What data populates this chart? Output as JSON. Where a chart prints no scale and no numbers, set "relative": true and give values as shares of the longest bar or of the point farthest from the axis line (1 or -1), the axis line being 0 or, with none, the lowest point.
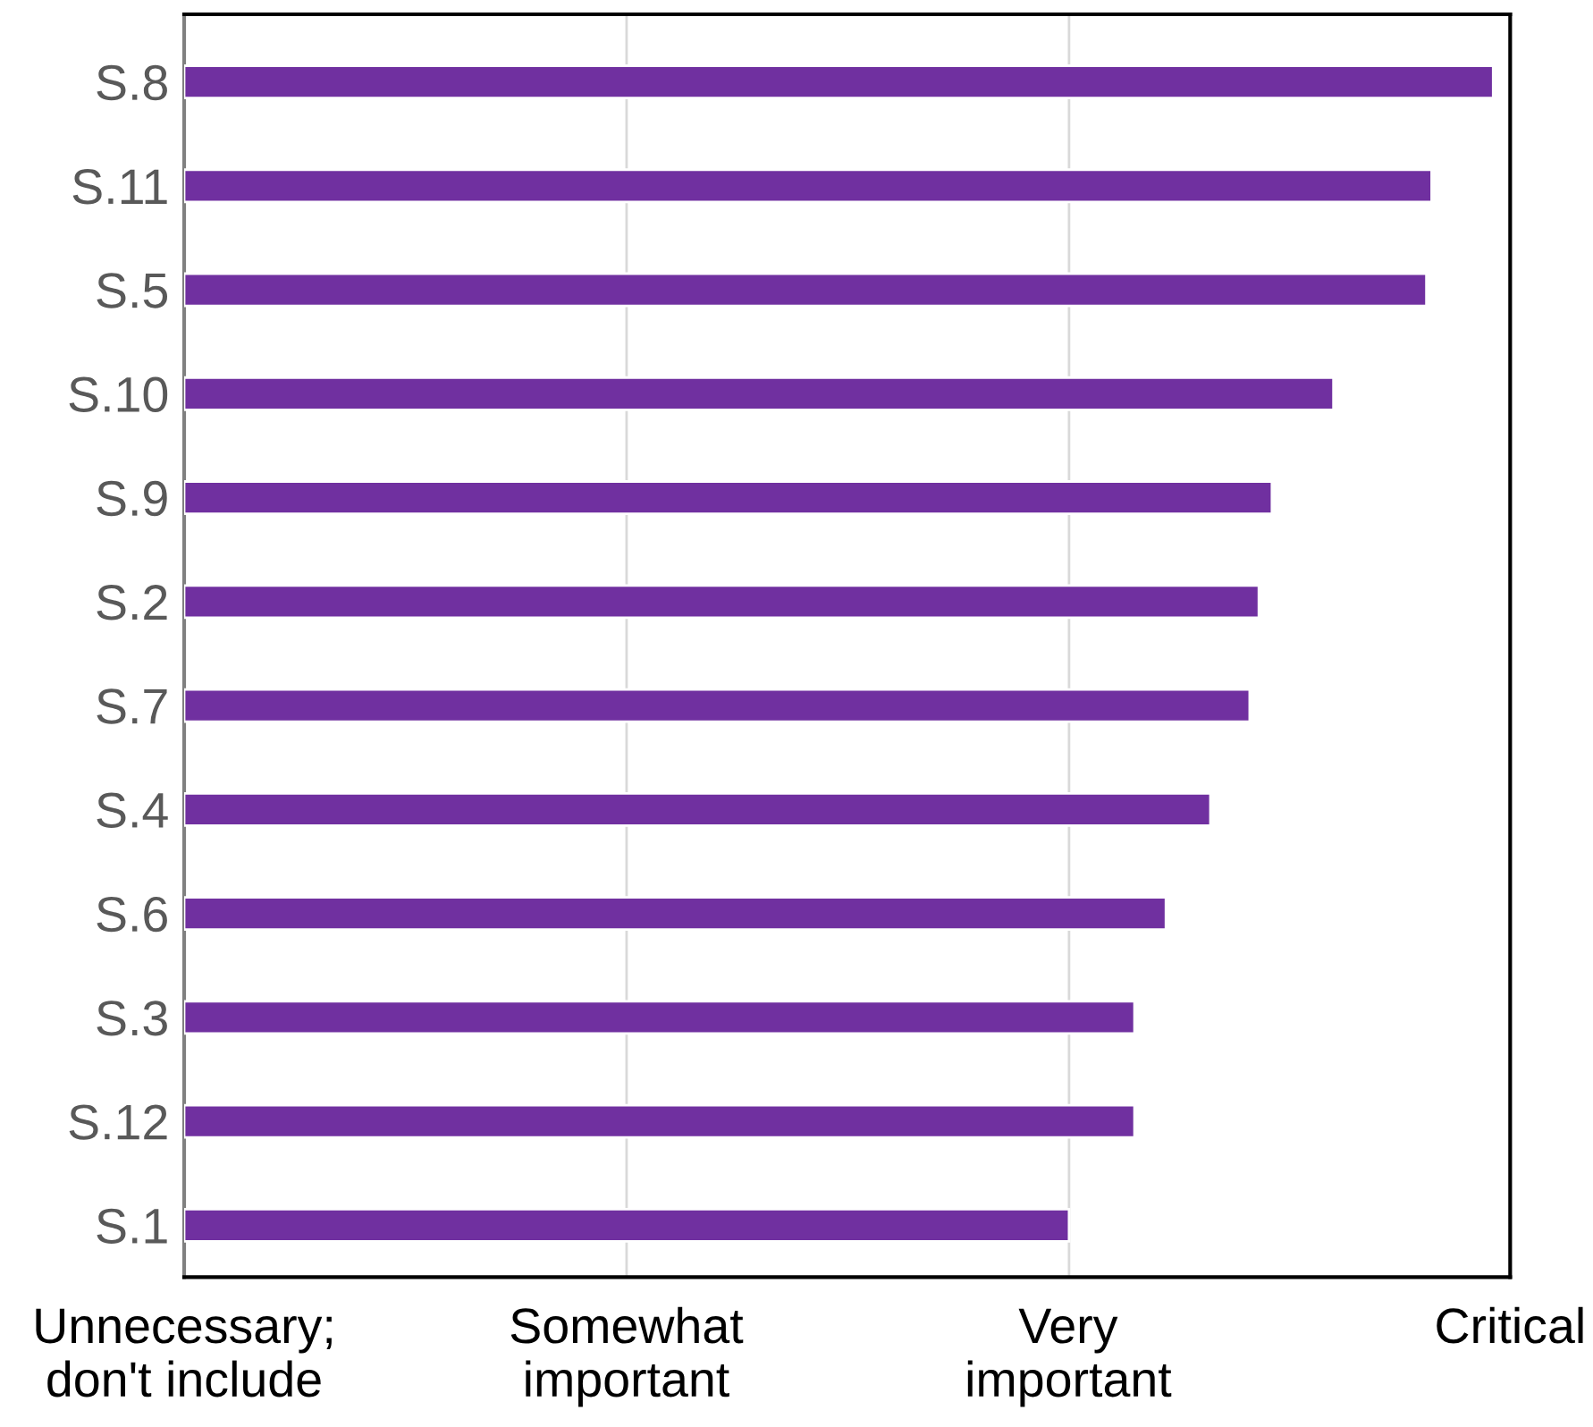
{
  "chart_data": {
    "type": "bar",
    "orientation": "horizontal",
    "color": "#7030a0",
    "relative": true,
    "categories": [
      "S.8",
      "S.11",
      "S.5",
      "S.10",
      "S.9",
      "S.2",
      "S.7",
      "S.4",
      "S.6",
      "S.3",
      "S.12",
      "S.1"
    ],
    "values": [
      1,
      0.953,
      0.949,
      0.878,
      0.831,
      0.821,
      0.814,
      0.784,
      0.75,
      0.726,
      0.726,
      0.676
    ],
    "annotations": [
      "Unnecessary;\ndon't include",
      "Somewhat\nimportant",
      "Very\nimportant",
      "Critical"
    ],
    "ref_lines": [
      {
        "axis": "x",
        "value": 0.338,
        "color": "#d9d9d9"
      },
      {
        "axis": "x",
        "value": 0.676,
        "color": "#d9d9d9"
      }
    ]
  }
}
